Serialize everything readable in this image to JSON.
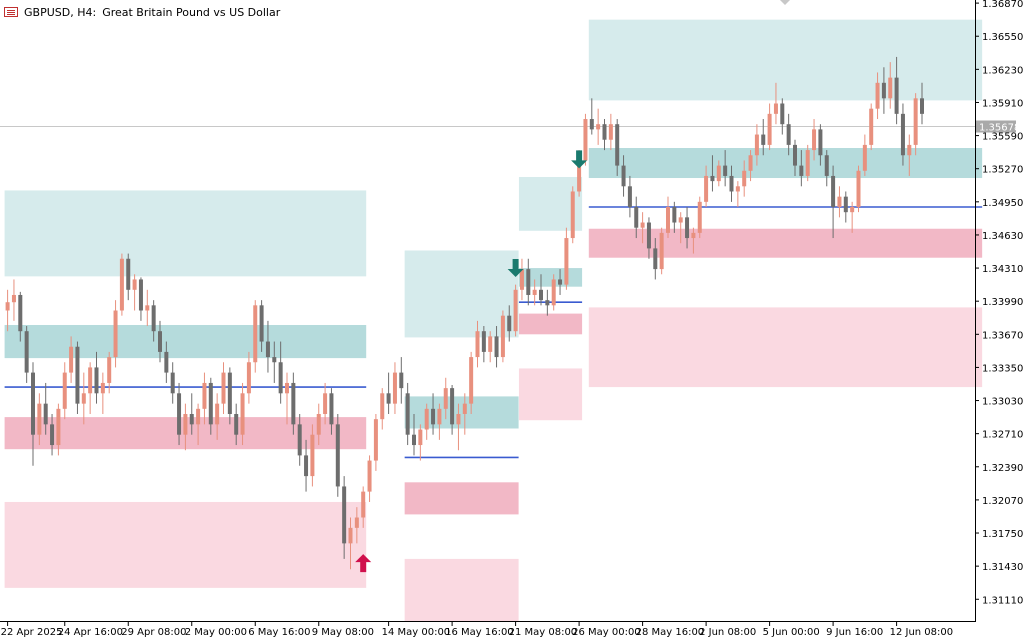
{
  "header": {
    "symbol_label": "GBPUSD, H4:",
    "description": "Great Britain Pound vs US Dollar",
    "icon": "chart-window-icon"
  },
  "current_price_label": "1.35678",
  "chart_data": {
    "type": "candlestick",
    "symbol": "GBPUSD",
    "timeframe": "H4",
    "title": "GBPUSD, H4:  Great Britain Pound vs US Dollar",
    "ylim": [
      1.309,
      1.369
    ],
    "current_price": 1.35678,
    "y_ticks": [
      "1.36870",
      "1.36550",
      "1.36230",
      "1.35910",
      "1.35590",
      "1.35270",
      "1.34950",
      "1.34630",
      "1.34310",
      "1.33990",
      "1.33670",
      "1.33350",
      "1.33030",
      "1.32710",
      "1.32390",
      "1.32070",
      "1.31750",
      "1.31430",
      "1.31110"
    ],
    "x_ticks": [
      "22 Apr 2025",
      "24 Apr 16:00",
      "29 Apr 08:00",
      "2 May 00:00",
      "6 May 16:00",
      "9 May 08:00",
      "14 May 00:00",
      "16 May 16:00",
      "21 May 08:00",
      "26 May 00:00",
      "28 May 16:00",
      "2 Jun 08:00",
      "5 Jun 00:00",
      "9 Jun 16:00",
      "12 Jun 08:00"
    ],
    "zones": [
      {
        "x0": 0,
        "x1": 56,
        "y0": 1.3423,
        "y1": 1.3506,
        "kind": "supply-light"
      },
      {
        "x0": 0,
        "x1": 56,
        "y0": 1.3344,
        "y1": 1.3376,
        "kind": "supply-dark"
      },
      {
        "x0": 0,
        "x1": 56,
        "y0": 1.3256,
        "y1": 1.3287,
        "kind": "demand-dark"
      },
      {
        "x0": 0,
        "x1": 56,
        "y0": 1.3122,
        "y1": 1.3205,
        "kind": "demand-light"
      },
      {
        "x0": 63,
        "x1": 80,
        "y0": 1.3364,
        "y1": 1.3448,
        "kind": "supply-light"
      },
      {
        "x0": 63,
        "x1": 80,
        "y0": 1.3276,
        "y1": 1.3307,
        "kind": "supply-dark"
      },
      {
        "x0": 63,
        "x1": 80,
        "y0": 1.3193,
        "y1": 1.3224,
        "kind": "demand-dark"
      },
      {
        "x0": 63,
        "x1": 80,
        "y0": 1.309,
        "y1": 1.315,
        "kind": "demand-light"
      },
      {
        "x0": 81,
        "x1": 90,
        "y0": 1.3467,
        "y1": 1.3519,
        "kind": "supply-light"
      },
      {
        "x0": 81,
        "x1": 90,
        "y0": 1.3413,
        "y1": 1.3431,
        "kind": "supply-dark"
      },
      {
        "x0": 81,
        "x1": 90,
        "y0": 1.3367,
        "y1": 1.3387,
        "kind": "demand-dark"
      },
      {
        "x0": 81,
        "x1": 90,
        "y0": 1.3284,
        "y1": 1.3334,
        "kind": "demand-light"
      },
      {
        "x0": 92,
        "x1": 153,
        "y0": 1.3593,
        "y1": 1.3671,
        "kind": "supply-light"
      },
      {
        "x0": 92,
        "x1": 153,
        "y0": 1.3518,
        "y1": 1.3547,
        "kind": "supply-dark"
      },
      {
        "x0": 92,
        "x1": 153,
        "y0": 1.3441,
        "y1": 1.3469,
        "kind": "demand-dark"
      },
      {
        "x0": 92,
        "x1": 153,
        "y0": 1.3316,
        "y1": 1.3393,
        "kind": "demand-light"
      }
    ],
    "levels": [
      {
        "x0": 0,
        "x1": 56,
        "y": 1.3316
      },
      {
        "x0": 63,
        "x1": 80,
        "y": 1.3248
      },
      {
        "x0": 81,
        "x1": 90,
        "y": 1.3398
      },
      {
        "x0": 92,
        "x1": 153,
        "y": 1.349
      }
    ],
    "signals": [
      {
        "x": 56,
        "y": 1.3145,
        "dir": "up"
      },
      {
        "x": 80,
        "y": 1.3432,
        "dir": "down"
      },
      {
        "x": 90,
        "y": 1.3537,
        "dir": "down"
      }
    ],
    "candles": [
      [
        1.339,
        1.341,
        1.337,
        1.3398
      ],
      [
        1.3398,
        1.342,
        1.338,
        1.3405
      ],
      [
        1.3405,
        1.3408,
        1.336,
        1.337
      ],
      [
        1.337,
        1.3375,
        1.332,
        1.333
      ],
      [
        1.333,
        1.334,
        1.324,
        1.327
      ],
      [
        1.327,
        1.331,
        1.326,
        1.33
      ],
      [
        1.33,
        1.332,
        1.327,
        1.328
      ],
      [
        1.328,
        1.329,
        1.325,
        1.326
      ],
      [
        1.326,
        1.33,
        1.325,
        1.3295
      ],
      [
        1.3295,
        1.334,
        1.3285,
        1.333
      ],
      [
        1.333,
        1.3365,
        1.332,
        1.3355
      ],
      [
        1.3355,
        1.336,
        1.329,
        1.33
      ],
      [
        1.33,
        1.333,
        1.328,
        1.331
      ],
      [
        1.331,
        1.334,
        1.329,
        1.3335
      ],
      [
        1.3335,
        1.335,
        1.33,
        1.331
      ],
      [
        1.331,
        1.333,
        1.329,
        1.332
      ],
      [
        1.332,
        1.335,
        1.331,
        1.3345
      ],
      [
        1.3345,
        1.34,
        1.3335,
        1.339
      ],
      [
        1.339,
        1.3445,
        1.3385,
        1.344
      ],
      [
        1.344,
        1.3445,
        1.34,
        1.341
      ],
      [
        1.341,
        1.3425,
        1.339,
        1.342
      ],
      [
        1.342,
        1.3422,
        1.338,
        1.339
      ],
      [
        1.339,
        1.341,
        1.3375,
        1.3395
      ],
      [
        1.3395,
        1.34,
        1.336,
        1.337
      ],
      [
        1.337,
        1.338,
        1.334,
        1.335
      ],
      [
        1.335,
        1.336,
        1.332,
        1.333
      ],
      [
        1.333,
        1.334,
        1.33,
        1.331
      ],
      [
        1.331,
        1.332,
        1.326,
        1.327
      ],
      [
        1.327,
        1.33,
        1.3255,
        1.329
      ],
      [
        1.329,
        1.331,
        1.327,
        1.328
      ],
      [
        1.328,
        1.33,
        1.326,
        1.3295
      ],
      [
        1.3295,
        1.333,
        1.328,
        1.332
      ],
      [
        1.332,
        1.3325,
        1.327,
        1.328
      ],
      [
        1.328,
        1.331,
        1.3265,
        1.33
      ],
      [
        1.33,
        1.334,
        1.329,
        1.333
      ],
      [
        1.333,
        1.3335,
        1.328,
        1.329
      ],
      [
        1.329,
        1.33,
        1.326,
        1.327
      ],
      [
        1.327,
        1.332,
        1.326,
        1.331
      ],
      [
        1.331,
        1.335,
        1.33,
        1.334
      ],
      [
        1.334,
        1.34,
        1.333,
        1.3395
      ],
      [
        1.3395,
        1.34,
        1.335,
        1.336
      ],
      [
        1.336,
        1.338,
        1.333,
        1.3345
      ],
      [
        1.3345,
        1.336,
        1.332,
        1.334
      ],
      [
        1.334,
        1.336,
        1.33,
        1.331
      ],
      [
        1.331,
        1.333,
        1.328,
        1.332
      ],
      [
        1.332,
        1.333,
        1.327,
        1.328
      ],
      [
        1.328,
        1.329,
        1.324,
        1.325
      ],
      [
        1.325,
        1.3265,
        1.3215,
        1.323
      ],
      [
        1.323,
        1.328,
        1.322,
        1.327
      ],
      [
        1.327,
        1.33,
        1.326,
        1.329
      ],
      [
        1.329,
        1.332,
        1.328,
        1.331
      ],
      [
        1.331,
        1.3315,
        1.327,
        1.328
      ],
      [
        1.328,
        1.329,
        1.321,
        1.322
      ],
      [
        1.322,
        1.323,
        1.315,
        1.3165
      ],
      [
        1.3165,
        1.319,
        1.314,
        1.318
      ],
      [
        1.318,
        1.32,
        1.3165,
        1.319
      ],
      [
        1.319,
        1.322,
        1.318,
        1.3215
      ],
      [
        1.3215,
        1.325,
        1.3205,
        1.3245
      ],
      [
        1.3245,
        1.329,
        1.3235,
        1.3285
      ],
      [
        1.3285,
        1.3315,
        1.3275,
        1.331
      ],
      [
        1.331,
        1.333,
        1.329,
        1.33
      ],
      [
        1.33,
        1.334,
        1.329,
        1.333
      ],
      [
        1.333,
        1.3345,
        1.33,
        1.3315
      ],
      [
        1.331,
        1.332,
        1.326,
        1.327
      ],
      [
        1.327,
        1.329,
        1.325,
        1.326
      ],
      [
        1.326,
        1.328,
        1.3245,
        1.3275
      ],
      [
        1.3275,
        1.33,
        1.3265,
        1.3295
      ],
      [
        1.3295,
        1.331,
        1.327,
        1.328
      ],
      [
        1.328,
        1.33,
        1.3265,
        1.3295
      ],
      [
        1.3295,
        1.3325,
        1.3285,
        1.3315
      ],
      [
        1.3315,
        1.3318,
        1.327,
        1.328
      ],
      [
        1.328,
        1.33,
        1.3255,
        1.329
      ],
      [
        1.329,
        1.331,
        1.327,
        1.33
      ],
      [
        1.33,
        1.335,
        1.329,
        1.3345
      ],
      [
        1.3345,
        1.338,
        1.3335,
        1.337
      ],
      [
        1.337,
        1.3375,
        1.334,
        1.335
      ],
      [
        1.335,
        1.337,
        1.334,
        1.3365
      ],
      [
        1.3365,
        1.3375,
        1.3335,
        1.3345
      ],
      [
        1.3345,
        1.339,
        1.334,
        1.3385
      ],
      [
        1.3385,
        1.3395,
        1.336,
        1.337
      ],
      [
        1.337,
        1.3415,
        1.3365,
        1.341
      ],
      [
        1.341,
        1.344,
        1.34,
        1.343
      ],
      [
        1.343,
        1.344,
        1.3395,
        1.3405
      ],
      [
        1.3405,
        1.342,
        1.3395,
        1.341
      ],
      [
        1.341,
        1.3425,
        1.3395,
        1.34
      ],
      [
        1.34,
        1.341,
        1.3385,
        1.3395
      ],
      [
        1.3395,
        1.3425,
        1.339,
        1.342
      ],
      [
        1.342,
        1.343,
        1.3405,
        1.3415
      ],
      [
        1.3415,
        1.347,
        1.341,
        1.346
      ],
      [
        1.346,
        1.351,
        1.3455,
        1.3505
      ],
      [
        1.3505,
        1.3545,
        1.35,
        1.3535
      ],
      [
        1.3535,
        1.358,
        1.353,
        1.3575
      ],
      [
        1.3575,
        1.3595,
        1.356,
        1.3565
      ],
      [
        1.3565,
        1.3585,
        1.355,
        1.357
      ],
      [
        1.357,
        1.3575,
        1.3545,
        1.3555
      ],
      [
        1.3555,
        1.358,
        1.3545,
        1.357
      ],
      [
        1.357,
        1.3575,
        1.352,
        1.353
      ],
      [
        1.353,
        1.354,
        1.35,
        1.351
      ],
      [
        1.351,
        1.352,
        1.348,
        1.349
      ],
      [
        1.349,
        1.35,
        1.346,
        1.347
      ],
      [
        1.347,
        1.3485,
        1.3455,
        1.3475
      ],
      [
        1.3475,
        1.348,
        1.344,
        1.345
      ],
      [
        1.345,
        1.346,
        1.342,
        1.343
      ],
      [
        1.343,
        1.347,
        1.3425,
        1.3465
      ],
      [
        1.3465,
        1.35,
        1.346,
        1.349
      ],
      [
        1.349,
        1.3495,
        1.3465,
        1.3475
      ],
      [
        1.3475,
        1.3485,
        1.3455,
        1.348
      ],
      [
        1.348,
        1.349,
        1.345,
        1.346
      ],
      [
        1.346,
        1.347,
        1.3445,
        1.3465
      ],
      [
        1.3465,
        1.35,
        1.346,
        1.3495
      ],
      [
        1.3495,
        1.353,
        1.349,
        1.352
      ],
      [
        1.352,
        1.354,
        1.3505,
        1.3515
      ],
      [
        1.3515,
        1.3535,
        1.351,
        1.353
      ],
      [
        1.353,
        1.3545,
        1.351,
        1.352
      ],
      [
        1.352,
        1.353,
        1.3495,
        1.3505
      ],
      [
        1.3505,
        1.3515,
        1.349,
        1.351
      ],
      [
        1.351,
        1.3535,
        1.35,
        1.3525
      ],
      [
        1.3525,
        1.3545,
        1.3515,
        1.354
      ],
      [
        1.354,
        1.357,
        1.353,
        1.356
      ],
      [
        1.356,
        1.3575,
        1.354,
        1.355
      ],
      [
        1.355,
        1.359,
        1.3545,
        1.358
      ],
      [
        1.358,
        1.361,
        1.357,
        1.359
      ],
      [
        1.359,
        1.3595,
        1.356,
        1.357
      ],
      [
        1.357,
        1.358,
        1.354,
        1.355
      ],
      [
        1.355,
        1.3555,
        1.352,
        1.353
      ],
      [
        1.353,
        1.3545,
        1.351,
        1.352
      ],
      [
        1.352,
        1.355,
        1.3515,
        1.3545
      ],
      [
        1.3545,
        1.3575,
        1.3535,
        1.3565
      ],
      [
        1.3565,
        1.357,
        1.353,
        1.354
      ],
      [
        1.354,
        1.3545,
        1.351,
        1.352
      ],
      [
        1.352,
        1.353,
        1.346,
        1.349
      ],
      [
        1.349,
        1.351,
        1.348,
        1.35
      ],
      [
        1.35,
        1.3505,
        1.3475,
        1.3485
      ],
      [
        1.3485,
        1.3495,
        1.3465,
        1.349
      ],
      [
        1.349,
        1.353,
        1.3485,
        1.3525
      ],
      [
        1.3525,
        1.356,
        1.352,
        1.355
      ],
      [
        1.355,
        1.359,
        1.3545,
        1.3585
      ],
      [
        1.3585,
        1.362,
        1.3575,
        1.361
      ],
      [
        1.361,
        1.3625,
        1.358,
        1.3595
      ],
      [
        1.3595,
        1.363,
        1.3585,
        1.3615
      ],
      [
        1.3615,
        1.3635,
        1.357,
        1.358
      ],
      [
        1.358,
        1.359,
        1.353,
        1.354
      ],
      [
        1.354,
        1.356,
        1.352,
        1.355
      ],
      [
        1.355,
        1.36,
        1.354,
        1.3595
      ],
      [
        1.3595,
        1.361,
        1.357,
        1.358
      ]
    ]
  }
}
